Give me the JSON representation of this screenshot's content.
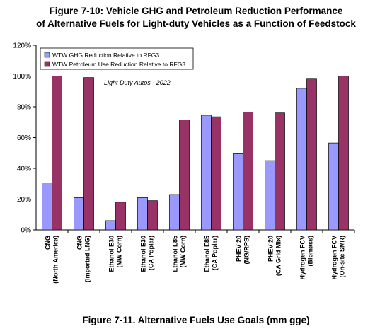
{
  "header": {
    "title_line1": "Figure 7-10: Vehicle GHG and Petroleum Reduction Performance",
    "title_line2": "of Alternative Fuels for Light-duty Vehicles as a Function of Feedstock"
  },
  "caption": "Figure 7-11. Alternative Fuels Use Goals (mm gge)",
  "colors": {
    "ghg": "#9999ff",
    "petroleum": "#993366",
    "border": "#000000"
  },
  "chart_data": {
    "type": "bar",
    "annotation": "Light Duty Autos - 2022",
    "legend_position": "top-left",
    "grid": false,
    "ylim": [
      0,
      120
    ],
    "yticks": [
      "0%",
      "20%",
      "40%",
      "60%",
      "80%",
      "100%",
      "120%"
    ],
    "categories": [
      [
        "CNG",
        "(North America)"
      ],
      [
        "CNG",
        "(Imported LNG)"
      ],
      [
        "Ethanol E30",
        "(MW Corn)"
      ],
      [
        "Ethanol E30",
        "(CA Poplar)"
      ],
      [
        "Ethanol E85",
        "(MW Corn)"
      ],
      [
        "Ethanol E85",
        "(CA Poplar)"
      ],
      [
        "PHEV 20",
        "(NG/RPS)"
      ],
      [
        "PHEV 20",
        "(CA Grid Mix)"
      ],
      [
        "Hydrogen FCV",
        "(Biomass)"
      ],
      [
        "Hydrogen FCV",
        "(On-site SMR)"
      ]
    ],
    "series": [
      {
        "name": "WTW GHG Reduction Relative to RFG3",
        "values": [
          30.5,
          21,
          6,
          21,
          23,
          74.5,
          49.5,
          45,
          92,
          56.5
        ]
      },
      {
        "name": "WTW Petroleum Use Reduction Relative to RFG3",
        "values": [
          100,
          99,
          18,
          19,
          71.5,
          73.5,
          76.5,
          76,
          98.5,
          100
        ]
      }
    ]
  }
}
